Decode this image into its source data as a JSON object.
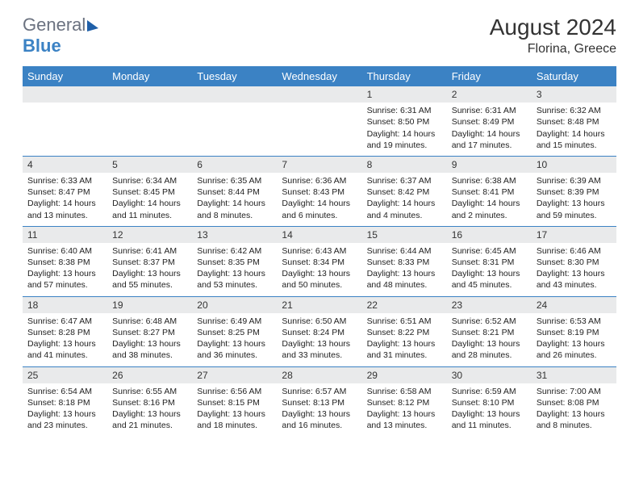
{
  "logo": {
    "word1": "General",
    "word2": "Blue"
  },
  "title": "August 2024",
  "location": "Florina, Greece",
  "colors": {
    "header_bar": "#3b82c4",
    "daynum_bg": "#e9eaeb",
    "row_border": "#3b82c4",
    "page_bg": "#ffffff"
  },
  "columns": [
    "Sunday",
    "Monday",
    "Tuesday",
    "Wednesday",
    "Thursday",
    "Friday",
    "Saturday"
  ],
  "weeks": [
    [
      {
        "blank": true
      },
      {
        "blank": true
      },
      {
        "blank": true
      },
      {
        "blank": true
      },
      {
        "day": "1",
        "sunrise": "6:31 AM",
        "sunset": "8:50 PM",
        "daylight": "14 hours and 19 minutes."
      },
      {
        "day": "2",
        "sunrise": "6:31 AM",
        "sunset": "8:49 PM",
        "daylight": "14 hours and 17 minutes."
      },
      {
        "day": "3",
        "sunrise": "6:32 AM",
        "sunset": "8:48 PM",
        "daylight": "14 hours and 15 minutes."
      }
    ],
    [
      {
        "day": "4",
        "sunrise": "6:33 AM",
        "sunset": "8:47 PM",
        "daylight": "14 hours and 13 minutes."
      },
      {
        "day": "5",
        "sunrise": "6:34 AM",
        "sunset": "8:45 PM",
        "daylight": "14 hours and 11 minutes."
      },
      {
        "day": "6",
        "sunrise": "6:35 AM",
        "sunset": "8:44 PM",
        "daylight": "14 hours and 8 minutes."
      },
      {
        "day": "7",
        "sunrise": "6:36 AM",
        "sunset": "8:43 PM",
        "daylight": "14 hours and 6 minutes."
      },
      {
        "day": "8",
        "sunrise": "6:37 AM",
        "sunset": "8:42 PM",
        "daylight": "14 hours and 4 minutes."
      },
      {
        "day": "9",
        "sunrise": "6:38 AM",
        "sunset": "8:41 PM",
        "daylight": "14 hours and 2 minutes."
      },
      {
        "day": "10",
        "sunrise": "6:39 AM",
        "sunset": "8:39 PM",
        "daylight": "13 hours and 59 minutes."
      }
    ],
    [
      {
        "day": "11",
        "sunrise": "6:40 AM",
        "sunset": "8:38 PM",
        "daylight": "13 hours and 57 minutes."
      },
      {
        "day": "12",
        "sunrise": "6:41 AM",
        "sunset": "8:37 PM",
        "daylight": "13 hours and 55 minutes."
      },
      {
        "day": "13",
        "sunrise": "6:42 AM",
        "sunset": "8:35 PM",
        "daylight": "13 hours and 53 minutes."
      },
      {
        "day": "14",
        "sunrise": "6:43 AM",
        "sunset": "8:34 PM",
        "daylight": "13 hours and 50 minutes."
      },
      {
        "day": "15",
        "sunrise": "6:44 AM",
        "sunset": "8:33 PM",
        "daylight": "13 hours and 48 minutes."
      },
      {
        "day": "16",
        "sunrise": "6:45 AM",
        "sunset": "8:31 PM",
        "daylight": "13 hours and 45 minutes."
      },
      {
        "day": "17",
        "sunrise": "6:46 AM",
        "sunset": "8:30 PM",
        "daylight": "13 hours and 43 minutes."
      }
    ],
    [
      {
        "day": "18",
        "sunrise": "6:47 AM",
        "sunset": "8:28 PM",
        "daylight": "13 hours and 41 minutes."
      },
      {
        "day": "19",
        "sunrise": "6:48 AM",
        "sunset": "8:27 PM",
        "daylight": "13 hours and 38 minutes."
      },
      {
        "day": "20",
        "sunrise": "6:49 AM",
        "sunset": "8:25 PM",
        "daylight": "13 hours and 36 minutes."
      },
      {
        "day": "21",
        "sunrise": "6:50 AM",
        "sunset": "8:24 PM",
        "daylight": "13 hours and 33 minutes."
      },
      {
        "day": "22",
        "sunrise": "6:51 AM",
        "sunset": "8:22 PM",
        "daylight": "13 hours and 31 minutes."
      },
      {
        "day": "23",
        "sunrise": "6:52 AM",
        "sunset": "8:21 PM",
        "daylight": "13 hours and 28 minutes."
      },
      {
        "day": "24",
        "sunrise": "6:53 AM",
        "sunset": "8:19 PM",
        "daylight": "13 hours and 26 minutes."
      }
    ],
    [
      {
        "day": "25",
        "sunrise": "6:54 AM",
        "sunset": "8:18 PM",
        "daylight": "13 hours and 23 minutes."
      },
      {
        "day": "26",
        "sunrise": "6:55 AM",
        "sunset": "8:16 PM",
        "daylight": "13 hours and 21 minutes."
      },
      {
        "day": "27",
        "sunrise": "6:56 AM",
        "sunset": "8:15 PM",
        "daylight": "13 hours and 18 minutes."
      },
      {
        "day": "28",
        "sunrise": "6:57 AM",
        "sunset": "8:13 PM",
        "daylight": "13 hours and 16 minutes."
      },
      {
        "day": "29",
        "sunrise": "6:58 AM",
        "sunset": "8:12 PM",
        "daylight": "13 hours and 13 minutes."
      },
      {
        "day": "30",
        "sunrise": "6:59 AM",
        "sunset": "8:10 PM",
        "daylight": "13 hours and 11 minutes."
      },
      {
        "day": "31",
        "sunrise": "7:00 AM",
        "sunset": "8:08 PM",
        "daylight": "13 hours and 8 minutes."
      }
    ]
  ],
  "labels": {
    "sunrise_prefix": "Sunrise: ",
    "sunset_prefix": "Sunset: ",
    "daylight_prefix": "Daylight: "
  }
}
